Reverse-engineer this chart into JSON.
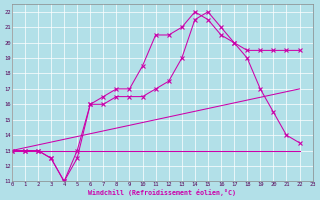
{
  "xlabel": "Windchill (Refroidissement éolien,°C)",
  "bg_color": "#b2e0e8",
  "line_color": "#cc00aa",
  "grid_color": "#ffffff",
  "xlim": [
    0,
    23
  ],
  "ylim": [
    11,
    22.5
  ],
  "xticks": [
    0,
    1,
    2,
    3,
    4,
    5,
    6,
    7,
    8,
    9,
    10,
    11,
    12,
    13,
    14,
    15,
    16,
    17,
    18,
    19,
    20,
    21,
    22,
    23
  ],
  "yticks": [
    11,
    12,
    13,
    14,
    15,
    16,
    17,
    18,
    19,
    20,
    21,
    22
  ],
  "line1_x": [
    0,
    1,
    2,
    3,
    4,
    5,
    6,
    7,
    8,
    9,
    10,
    11,
    12,
    13,
    14,
    15,
    16,
    17,
    18,
    19,
    20,
    21,
    22
  ],
  "line1_y": [
    13,
    13,
    13,
    12.5,
    11,
    13,
    16,
    16.5,
    17,
    17,
    18.5,
    20.5,
    20.5,
    21,
    22,
    21.5,
    20.5,
    20,
    19.5,
    19.5,
    19.5,
    19.5,
    19.5
  ],
  "line2_x": [
    0,
    1,
    2,
    3,
    4,
    5,
    6,
    7,
    8,
    9,
    10,
    11,
    12,
    13,
    14,
    15,
    16,
    17,
    18,
    19,
    20,
    21,
    22
  ],
  "line2_y": [
    13,
    13,
    13,
    12.5,
    11,
    12.5,
    16,
    16,
    16.5,
    16.5,
    16.5,
    17,
    17.5,
    19,
    21.5,
    22,
    21,
    20,
    19,
    17,
    15.5,
    14,
    13.5
  ],
  "line3_x": [
    0,
    22
  ],
  "line3_y": [
    13,
    13
  ],
  "line4_x": [
    0,
    22
  ],
  "line4_y": [
    13,
    17
  ]
}
